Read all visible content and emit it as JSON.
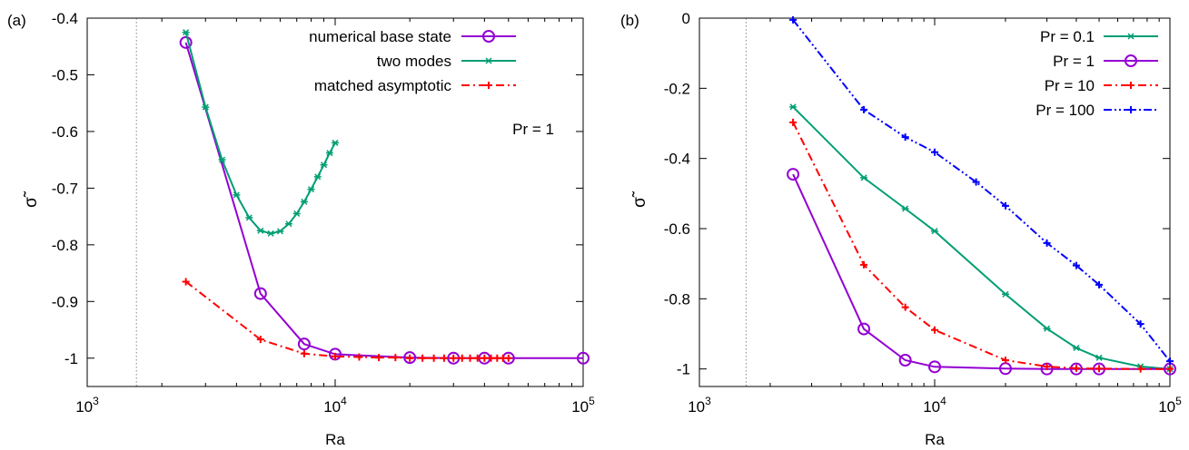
{
  "chart_data": [
    {
      "type": "line",
      "panel_label": "(a)",
      "xlabel": "Ra",
      "ylabel": "σ̃",
      "xscale": "log",
      "xlim": [
        1000,
        100000
      ],
      "ylim": [
        -1.05,
        -0.4
      ],
      "xticks": [
        {
          "value": 1000,
          "base": "10",
          "exp": "3"
        },
        {
          "value": 10000,
          "base": "10",
          "exp": "4"
        },
        {
          "value": 100000,
          "base": "10",
          "exp": "5"
        }
      ],
      "yticks": [
        {
          "value": -0.4,
          "label": "-0.4"
        },
        {
          "value": -0.5,
          "label": "-0.5"
        },
        {
          "value": -0.6,
          "label": "-0.6"
        },
        {
          "value": -0.7,
          "label": "-0.7"
        },
        {
          "value": -0.8,
          "label": "-0.8"
        },
        {
          "value": -0.9,
          "label": "-0.9"
        },
        {
          "value": -1.0,
          "label": "-1"
        }
      ],
      "vline_x": 1580,
      "annotation": "Pr = 1",
      "legend_position": "top-right",
      "series": [
        {
          "name": "numerical base state",
          "color": "#9400d3",
          "marker": "circle",
          "dash": "solid",
          "x": [
            2500,
            5000,
            7500,
            10000,
            20000,
            30000,
            40000,
            50000,
            100000
          ],
          "y": [
            -0.443,
            -0.886,
            -0.975,
            -0.993,
            -0.999,
            -1.0,
            -1.0,
            -1.0,
            -1.0
          ]
        },
        {
          "name": "two modes",
          "color": "#009e73",
          "marker": "star",
          "dash": "solid",
          "x": [
            2500,
            3000,
            3500,
            4000,
            4500,
            5000,
            5500,
            6000,
            6500,
            7000,
            7500,
            8000,
            8500,
            9000,
            9500,
            10000
          ],
          "y": [
            -0.425,
            -0.557,
            -0.65,
            -0.712,
            -0.752,
            -0.775,
            -0.78,
            -0.776,
            -0.763,
            -0.745,
            -0.724,
            -0.702,
            -0.68,
            -0.659,
            -0.638,
            -0.62
          ]
        },
        {
          "name": "matched asymptotic",
          "color": "#ff0000",
          "marker": "plus",
          "dash": "dashdot",
          "x": [
            2500,
            5000,
            7500,
            10000,
            12500,
            15000,
            17500,
            20000,
            22500,
            25000,
            27500,
            30000,
            32500,
            35000,
            37500,
            40000,
            42500,
            45000,
            47500,
            50000
          ],
          "y": [
            -0.865,
            -0.967,
            -0.992,
            -0.997,
            -0.998,
            -0.999,
            -0.999,
            -1.0,
            -1.0,
            -1.0,
            -1.0,
            -1.0,
            -1.0,
            -1.0,
            -1.0,
            -1.0,
            -1.0,
            -1.0,
            -1.0,
            -1.0
          ]
        }
      ]
    },
    {
      "type": "line",
      "panel_label": "(b)",
      "xlabel": "Ra",
      "ylabel": "σ̃",
      "xscale": "log",
      "xlim": [
        1000,
        100000
      ],
      "ylim": [
        -1.05,
        0
      ],
      "xticks": [
        {
          "value": 1000,
          "base": "10",
          "exp": "3"
        },
        {
          "value": 10000,
          "base": "10",
          "exp": "4"
        },
        {
          "value": 100000,
          "base": "10",
          "exp": "5"
        }
      ],
      "yticks": [
        {
          "value": 0,
          "label": "0"
        },
        {
          "value": -0.2,
          "label": "-0.2"
        },
        {
          "value": -0.4,
          "label": "-0.4"
        },
        {
          "value": -0.6,
          "label": "-0.6"
        },
        {
          "value": -0.8,
          "label": "-0.8"
        },
        {
          "value": -1.0,
          "label": "-1"
        }
      ],
      "vline_x": 1580,
      "annotation": "",
      "legend_position": "top-right",
      "series": [
        {
          "name": "Pr = 0.1",
          "color": "#009e73",
          "marker": "star",
          "dash": "solid",
          "x": [
            2500,
            5000,
            7500,
            10000,
            20000,
            30000,
            40000,
            50000,
            75000,
            100000
          ],
          "y": [
            -0.253,
            -0.455,
            -0.543,
            -0.607,
            -0.787,
            -0.885,
            -0.94,
            -0.968,
            -0.993,
            -1.0
          ]
        },
        {
          "name": "Pr = 1",
          "color": "#9400d3",
          "marker": "circle",
          "dash": "solid",
          "x": [
            2500,
            5000,
            7500,
            10000,
            20000,
            30000,
            40000,
            50000,
            100000
          ],
          "y": [
            -0.445,
            -0.886,
            -0.975,
            -0.994,
            -0.999,
            -1.0,
            -1.0,
            -1.0,
            -1.0
          ]
        },
        {
          "name": "Pr = 10",
          "color": "#ff0000",
          "marker": "plus",
          "dash": "dashdot",
          "x": [
            2500,
            5000,
            7500,
            10000,
            20000,
            30000,
            40000,
            50000,
            75000,
            100000
          ],
          "y": [
            -0.297,
            -0.703,
            -0.824,
            -0.889,
            -0.975,
            -0.993,
            -0.998,
            -0.999,
            -1.0,
            -1.0
          ]
        },
        {
          "name": "Pr = 100",
          "color": "#0000ff",
          "marker": "plus",
          "dash": "dashdotdot",
          "x": [
            2500,
            5000,
            7500,
            10000,
            15000,
            20000,
            30000,
            40000,
            50000,
            75000,
            100000
          ],
          "y": [
            -0.005,
            -0.261,
            -0.339,
            -0.382,
            -0.467,
            -0.535,
            -0.641,
            -0.705,
            -0.76,
            -0.872,
            -0.978
          ]
        }
      ]
    }
  ]
}
